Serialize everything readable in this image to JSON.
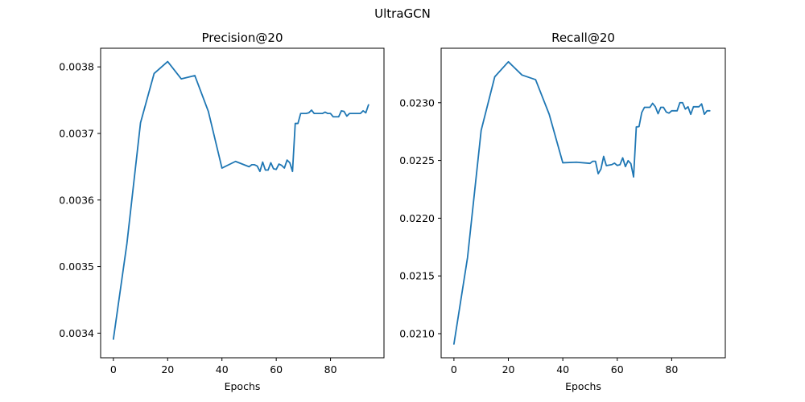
{
  "suptitle": "UltraGCN",
  "chart_data": [
    {
      "type": "line",
      "title": "Precision@20",
      "xlabel": "Epochs",
      "ylabel": "",
      "xlim": [
        -4.7,
        99.7
      ],
      "ylim": [
        0.003363,
        0.003828
      ],
      "xticks": [
        0,
        20,
        40,
        60,
        80
      ],
      "xtick_labels": [
        "0",
        "20",
        "40",
        "60",
        "80"
      ],
      "yticks": [
        0.0034,
        0.0035,
        0.0036,
        0.0037,
        0.0038
      ],
      "ytick_labels": [
        "0.0034",
        "0.0035",
        "0.0036",
        "0.0037",
        "0.0038"
      ],
      "grid": false,
      "series": [
        {
          "color": "#1f77b4",
          "x": [
            0,
            5,
            10,
            15,
            20,
            25,
            30,
            35,
            40,
            45,
            50,
            51,
            52,
            53,
            54,
            55,
            56,
            57,
            58,
            59,
            60,
            61,
            62,
            63,
            64,
            65,
            66,
            67,
            68,
            69,
            70,
            71,
            72,
            73,
            74,
            75,
            76,
            77,
            78,
            79,
            80,
            81,
            82,
            83,
            84,
            85,
            86,
            87,
            88,
            89,
            90,
            91,
            92,
            93,
            94
          ],
          "y": [
            0.003391,
            0.003535,
            0.003716,
            0.00379,
            0.003808,
            0.003782,
            0.003787,
            0.003733,
            0.003648,
            0.003658,
            0.00365,
            0.003653,
            0.003653,
            0.003651,
            0.003643,
            0.003657,
            0.003645,
            0.003645,
            0.003656,
            0.003647,
            0.003646,
            0.003654,
            0.003652,
            0.003648,
            0.00366,
            0.003656,
            0.003643,
            0.003715,
            0.003715,
            0.00373,
            0.00373,
            0.00373,
            0.003731,
            0.003735,
            0.00373,
            0.00373,
            0.00373,
            0.00373,
            0.003732,
            0.00373,
            0.00373,
            0.003725,
            0.003725,
            0.003725,
            0.003734,
            0.003733,
            0.003726,
            0.00373,
            0.00373,
            0.00373,
            0.00373,
            0.00373,
            0.003734,
            0.003731,
            0.003743
          ]
        }
      ]
    },
    {
      "type": "line",
      "title": "Recall@20",
      "xlabel": "Epochs",
      "ylabel": "",
      "xlim": [
        -4.7,
        99.7
      ],
      "ylim": [
        0.020791,
        0.023472
      ],
      "xticks": [
        0,
        20,
        40,
        60,
        80
      ],
      "xtick_labels": [
        "0",
        "20",
        "40",
        "60",
        "80"
      ],
      "yticks": [
        0.021,
        0.0215,
        0.022,
        0.0225,
        0.023
      ],
      "ytick_labels": [
        "0.0210",
        "0.0215",
        "0.0220",
        "0.0225",
        "0.0230"
      ],
      "grid": false,
      "series": [
        {
          "color": "#1f77b4",
          "x": [
            0,
            5,
            10,
            15,
            20,
            25,
            30,
            35,
            40,
            45,
            50,
            51,
            52,
            53,
            54,
            55,
            56,
            57,
            58,
            59,
            60,
            61,
            62,
            63,
            64,
            65,
            66,
            67,
            68,
            69,
            70,
            71,
            72,
            73,
            74,
            75,
            76,
            77,
            78,
            79,
            80,
            81,
            82,
            83,
            84,
            85,
            86,
            87,
            88,
            89,
            90,
            91,
            92,
            93,
            94
          ],
          "y": [
            0.02091,
            0.02166,
            0.02276,
            0.023225,
            0.023355,
            0.02324,
            0.0232,
            0.0229,
            0.02248,
            0.022485,
            0.022475,
            0.022493,
            0.022493,
            0.022385,
            0.022425,
            0.022535,
            0.022455,
            0.02246,
            0.022464,
            0.022477,
            0.022457,
            0.022463,
            0.022523,
            0.022447,
            0.022498,
            0.022473,
            0.022357,
            0.02279,
            0.022793,
            0.022915,
            0.02296,
            0.02296,
            0.02296,
            0.022995,
            0.022965,
            0.022905,
            0.02296,
            0.02296,
            0.02292,
            0.02291,
            0.02293,
            0.02293,
            0.02293,
            0.023,
            0.023,
            0.022945,
            0.022965,
            0.0229,
            0.022965,
            0.022965,
            0.022965,
            0.02299,
            0.0229,
            0.02293,
            0.02293
          ]
        }
      ]
    }
  ]
}
